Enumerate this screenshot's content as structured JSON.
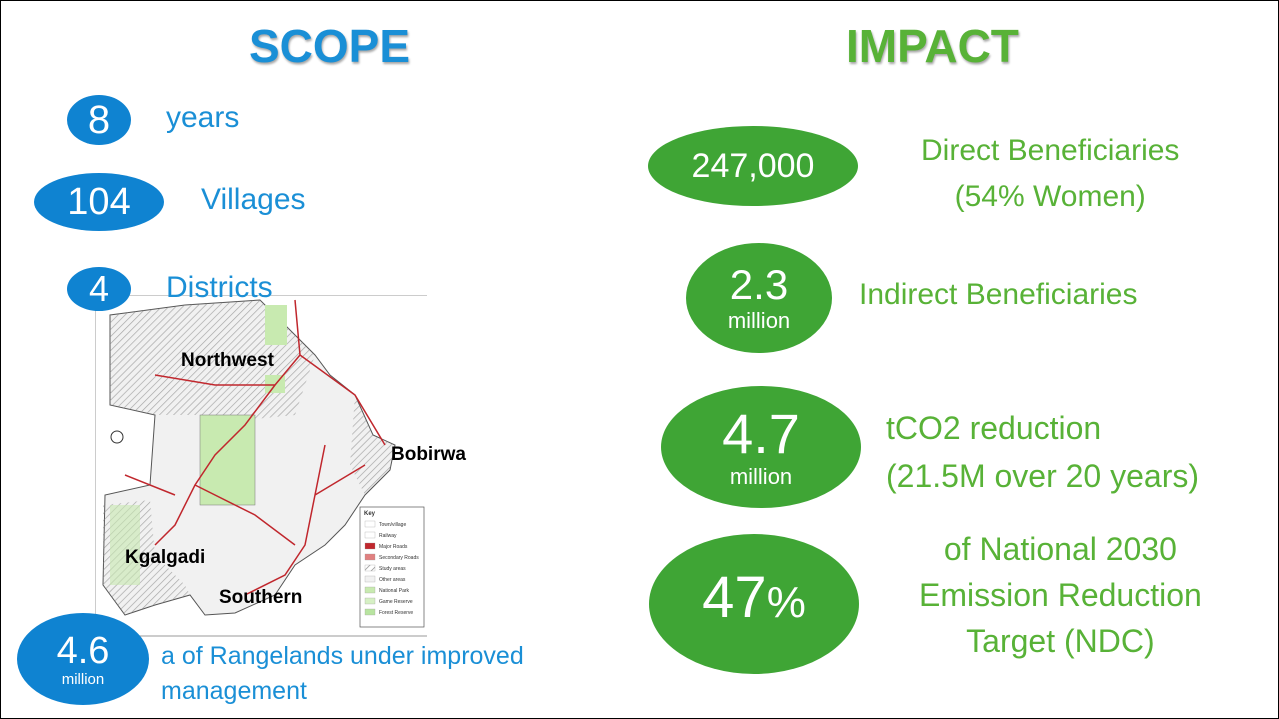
{
  "scope": {
    "title": "SCOPE",
    "items": [
      {
        "number": "8",
        "label": "years"
      },
      {
        "number": "104",
        "label": "Villages"
      },
      {
        "number": "4",
        "label": "Districts"
      }
    ],
    "map": {
      "regions": [
        "Northwest",
        "Bobirwa",
        "Kgalgadi",
        "Southern"
      ],
      "key_title": "Key",
      "key": [
        "Town/village",
        "Railway",
        "Major Roads",
        "Secondary Roads",
        "Study areas",
        "Other areas",
        "National Park",
        "Game Reserve",
        "Forest Reserve"
      ]
    },
    "rangelands": {
      "number": "4.6",
      "unit": "million",
      "label_lines": [
        "a of Rangelands under improved",
        "management"
      ]
    }
  },
  "impact": {
    "title": "IMPACT",
    "items": [
      {
        "number": "247,000",
        "label_lines": [
          "Direct Beneficiaries",
          "(54% Women)"
        ]
      },
      {
        "number": "2.3",
        "unit": "million",
        "label_lines": [
          "Indirect Beneficiaries"
        ]
      },
      {
        "number": "4.7",
        "unit": "million",
        "label_lines": [
          "tCO2 reduction",
          "(21.5M over 20 years)"
        ]
      },
      {
        "number": "47",
        "unit": "%",
        "label_lines": [
          "of National 2030",
          "Emission Reduction",
          "Target (NDC)"
        ]
      }
    ]
  }
}
